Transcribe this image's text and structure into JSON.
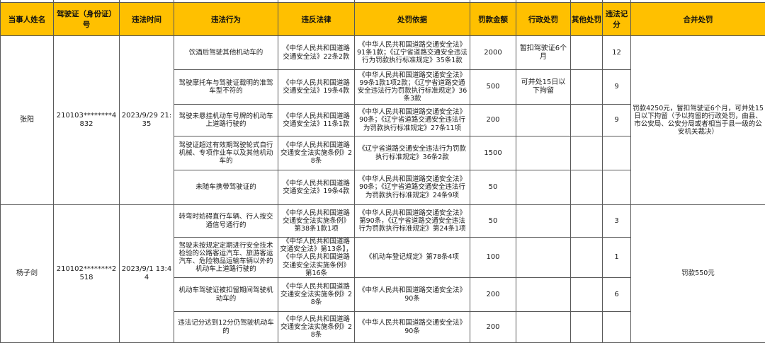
{
  "colors": {
    "header_bg": "#FFC000",
    "border": "#595959",
    "text": "#1c1c1c",
    "partial_row_bg": "#cfcfcf"
  },
  "table": {
    "headers": [
      "当事人姓名",
      "驾驶证（身份证）号",
      "违法时间",
      "违法行为",
      "违反法律",
      "处罚依据",
      "罚款金额",
      "行政处罚",
      "其他处罚",
      "违法记分",
      "合并处罚"
    ],
    "groups": [
      {
        "name": "张阳",
        "license": "210103********4832",
        "time": "2023/9/29 21:35",
        "combined": "罚款4250元，暂扣驾驶证6个月，可并处15日以下拘留（予以拘留的行政处罚，由县、市公安局、公安分局或者相当于县一级的公安机关裁决）",
        "rows": [
          {
            "behavior": "饮酒后驾驶其他机动车的",
            "law": "《中华人民共和国道路交通安全法》22条2款",
            "basis": "《中华人民共和国道路交通安全法》91条1款；《辽宁省道路交通安全违法行为罚款执行标准规定》35条1款",
            "fine": "2000",
            "admin": "暂扣驾驶证6个月",
            "other": "",
            "points": "12"
          },
          {
            "behavior": "驾驶摩托车与驾驶证载明的准驾车型不符的",
            "law": "《中华人民共和国道路交通安全法》19条4款",
            "basis": "《中华人民共和国道路交通安全法》99条1款1项2款；《辽宁省道路交通安全违法行为罚款执行标准规定》36条3款",
            "fine": "500",
            "admin": "可并处15日以下拘留",
            "other": "",
            "points": "9"
          },
          {
            "behavior": "驾驶未悬挂机动车号牌的机动车上道路行驶的",
            "law": "《中华人民共和国道路交通安全法》11条1款",
            "basis": "《中华人民共和国道路交通安全法》90条；《辽宁省道路交通安全违法行为罚款执行标准规定》27条11项",
            "fine": "200",
            "admin": "",
            "other": "",
            "points": "9"
          },
          {
            "behavior": "驾驶证超过有效期驾驶轮式自行机械、专项作业车以及其他机动车的",
            "law": "《中华人民共和国道路交通安全法实施条例》28条",
            "basis": "《辽宁省道路交通安全违法行为罚款执行标准规定》36条2款",
            "fine": "1500",
            "admin": "",
            "other": "",
            "points": ""
          },
          {
            "behavior": "未随车携带驾驶证的",
            "law": "《中华人民共和国道路交通安全法》19条4款",
            "basis": "《中华人民共和国道路交通安全法》90条；《辽宁省道路交通安全违法行为罚款执行标准规定》24条9项",
            "fine": "50",
            "admin": "",
            "other": "",
            "points": ""
          }
        ]
      },
      {
        "name": "杨子剑",
        "license": "210102********2518",
        "time": "2023/9/1 13:44",
        "combined": "罚款550元",
        "rows": [
          {
            "behavior": "转弯时妨碍直行车辆、行人按交通信号通行的",
            "law": "《中华人民共和国道路交通安全法实施条例》第38条1款1项",
            "basis": "《中华人民共和国道路交通安全法》第90条，《辽宁省道路交通安全违法行为罚款执行标准规定》第24条1项",
            "fine": "50",
            "admin": "",
            "other": "",
            "points": "3"
          },
          {
            "behavior": "驾驶未按规定定期进行安全技术检验的公路客运汽车、旅游客运汽车、危险物品运输车辆以外的机动车上道路行驶的",
            "law": "《中华人民共和国道路交通安全法》第13条】，《中华人民共和国道路交通安全法实施条例》第16条",
            "basis": "《机动车登记规定》第78条4项",
            "fine": "100",
            "admin": "",
            "other": "",
            "points": "1"
          },
          {
            "behavior": "机动车驾驶证被扣留期间驾驶机动车的",
            "law": "《中华人民共和国道路交通安全法实施条例》28条",
            "basis": "《中华人民共和国道路交通安全法》90条",
            "fine": "200",
            "admin": "",
            "other": "",
            "points": "6"
          },
          {
            "behavior": "违法记分达到12分仍驾驶机动车的",
            "law": "《中华人民共和国道路交通安全法实施条例》28条",
            "basis": "《中华人民共和国道路交通安全法》90条",
            "fine": "200",
            "admin": "",
            "other": "",
            "points": ""
          }
        ]
      }
    ]
  }
}
